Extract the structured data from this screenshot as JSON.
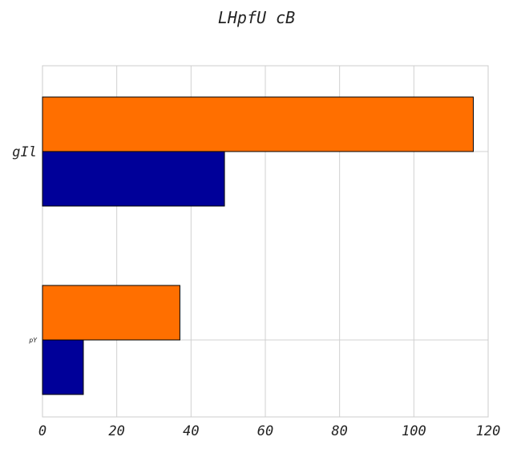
{
  "chart_data": {
    "type": "bar",
    "orientation": "horizontal",
    "title": "LHpfU cB",
    "xlabel": "",
    "ylabel": "",
    "categories": [
      "gIl",
      "pY"
    ],
    "series": [
      {
        "values": [
          116,
          37
        ],
        "color": "#ff6f00"
      },
      {
        "values": [
          49,
          11
        ],
        "color": "#000099"
      }
    ],
    "xlim": [
      0,
      120
    ],
    "xticks": [
      0,
      20,
      40,
      60,
      80,
      100,
      120
    ],
    "grid": true,
    "legend": "none"
  }
}
